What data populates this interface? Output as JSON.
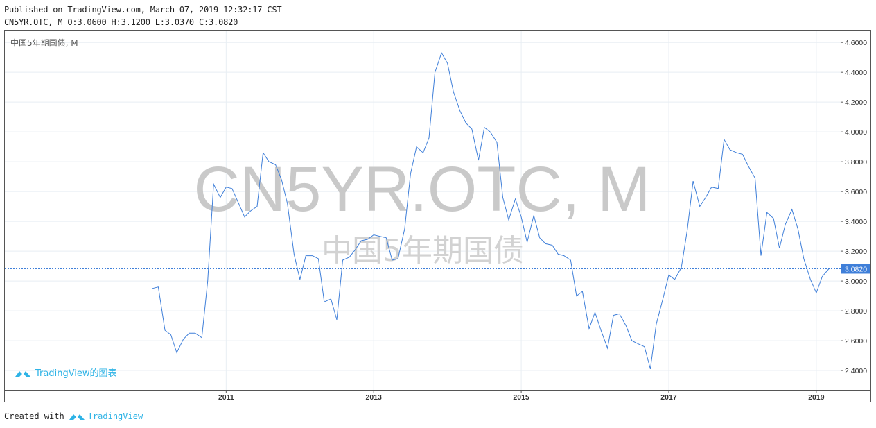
{
  "header": {
    "published": "Published on TradingView.com, March 07, 2019 12:32:17 CST",
    "ohlc": "CN5YR.OTC, M O:3.0600 H:3.1200 L:3.0370 C:3.0820"
  },
  "pane_title": "中国5年期国债, M",
  "watermark": {
    "symbol": "CN5YR.OTC, M",
    "name": "中国5年期国债"
  },
  "in_chart_logo": "TradingView的图表",
  "footer": {
    "created_with": "Created with",
    "brand": "TradingView"
  },
  "colors": {
    "line": "#3f7fd9",
    "grid": "#e8eef3",
    "last_label_bg": "#3f7fd9",
    "brand": "#2eb3e6"
  },
  "chart_data": {
    "type": "line",
    "title": "",
    "xlabel": "",
    "ylabel": "",
    "xlim": [
      2008.0,
      2019.33
    ],
    "ylim": [
      2.27,
      4.68
    ],
    "x_ticks": [
      2011,
      2013,
      2015,
      2017,
      2019
    ],
    "y_ticks": [
      "2.4000",
      "2.6000",
      "2.8000",
      "3.0000",
      "3.2000",
      "3.4000",
      "3.6000",
      "3.8000",
      "4.0000",
      "4.2000",
      "4.4000",
      "4.6000"
    ],
    "last_value_label": "3.0820",
    "last_value": 3.082,
    "grid": true,
    "series": [
      {
        "x": [
          2010.0,
          2010.08,
          2010.17,
          2010.25,
          2010.33,
          2010.42,
          2010.5,
          2010.58,
          2010.67,
          2010.75,
          2010.83,
          2010.92,
          2011.0,
          2011.08,
          2011.17,
          2011.25,
          2011.33,
          2011.42,
          2011.5,
          2011.58,
          2011.67,
          2011.75,
          2011.83,
          2011.92,
          2012.0,
          2012.08,
          2012.17,
          2012.25,
          2012.33,
          2012.42,
          2012.5,
          2012.58,
          2012.67,
          2012.75,
          2012.83,
          2012.92,
          2013.0,
          2013.08,
          2013.17,
          2013.25,
          2013.33,
          2013.42,
          2013.5,
          2013.58,
          2013.67,
          2013.75,
          2013.83,
          2013.92,
          2014.0,
          2014.08,
          2014.17,
          2014.25,
          2014.33,
          2014.42,
          2014.5,
          2014.58,
          2014.67,
          2014.75,
          2014.83,
          2014.92,
          2015.0,
          2015.08,
          2015.17,
          2015.25,
          2015.33,
          2015.42,
          2015.5,
          2015.58,
          2015.67,
          2015.75,
          2015.83,
          2015.92,
          2016.0,
          2016.08,
          2016.17,
          2016.25,
          2016.33,
          2016.42,
          2016.5,
          2016.58,
          2016.67,
          2016.75,
          2016.83,
          2016.92,
          2017.0,
          2017.08,
          2017.17,
          2017.25,
          2017.33,
          2017.42,
          2017.5,
          2017.58,
          2017.67,
          2017.75,
          2017.83,
          2017.92,
          2018.0,
          2018.08,
          2018.17,
          2018.25,
          2018.33,
          2018.42,
          2018.5,
          2018.58,
          2018.67,
          2018.75,
          2018.83,
          2018.92,
          2019.0,
          2019.08,
          2019.17
        ],
        "values": [
          2.95,
          2.96,
          2.67,
          2.64,
          2.52,
          2.61,
          2.65,
          2.65,
          2.62,
          3.0,
          3.65,
          3.56,
          3.63,
          3.62,
          3.52,
          3.43,
          3.47,
          3.5,
          3.86,
          3.8,
          3.78,
          3.68,
          3.52,
          3.18,
          3.01,
          3.17,
          3.17,
          3.15,
          2.86,
          2.88,
          2.74,
          3.14,
          3.16,
          3.21,
          3.27,
          3.28,
          3.31,
          3.3,
          3.29,
          3.14,
          3.15,
          3.35,
          3.72,
          3.9,
          3.86,
          3.96,
          4.4,
          4.53,
          4.46,
          4.27,
          4.14,
          4.06,
          4.02,
          3.81,
          4.03,
          4.0,
          3.93,
          3.56,
          3.41,
          3.55,
          3.43,
          3.26,
          3.44,
          3.29,
          3.25,
          3.24,
          3.18,
          3.17,
          3.14,
          2.9,
          2.93,
          2.68,
          2.79,
          2.67,
          2.55,
          2.77,
          2.78,
          2.7,
          2.6,
          2.58,
          2.56,
          2.41,
          2.71,
          2.88,
          3.04,
          3.01,
          3.09,
          3.34,
          3.67,
          3.5,
          3.56,
          3.63,
          3.62,
          3.95,
          3.88,
          3.86,
          3.85,
          3.77,
          3.69,
          3.17,
          3.46,
          3.42,
          3.22,
          3.38,
          3.48,
          3.35,
          3.15,
          3.01,
          2.92,
          3.03,
          3.082
        ]
      }
    ]
  }
}
